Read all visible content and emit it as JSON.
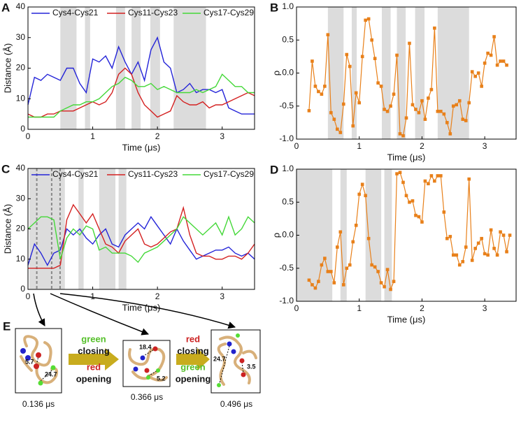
{
  "chart_data": [
    {
      "type": "line",
      "panel_label": "A",
      "xlabel": "Time (μs)",
      "ylabel": "Distance (Å)",
      "xlim": [
        0,
        3.5
      ],
      "ylim": [
        0,
        40
      ],
      "xticks": [
        0,
        1,
        2,
        3
      ],
      "yticks": [
        0,
        10,
        20,
        30,
        40
      ],
      "legend": "top",
      "bands": [
        [
          0.5,
          0.75
        ],
        [
          0.88,
          0.96
        ],
        [
          1.36,
          1.5
        ],
        [
          1.6,
          1.74
        ],
        [
          1.89,
          2.04
        ],
        [
          2.25,
          2.75
        ]
      ],
      "x": [
        0,
        0.1,
        0.2,
        0.3,
        0.4,
        0.5,
        0.6,
        0.7,
        0.8,
        0.9,
        1.0,
        1.1,
        1.2,
        1.3,
        1.4,
        1.5,
        1.6,
        1.7,
        1.8,
        1.9,
        2.0,
        2.1,
        2.2,
        2.3,
        2.4,
        2.5,
        2.6,
        2.7,
        2.8,
        2.9,
        3.0,
        3.1,
        3.2,
        3.3,
        3.4,
        3.5
      ],
      "series": [
        {
          "name": "Cys4-Cys21",
          "color": "#2424d8",
          "values": [
            8,
            17,
            16,
            18,
            17,
            16,
            20,
            20,
            15,
            12,
            23,
            22,
            24,
            20,
            27,
            22,
            18,
            22,
            16,
            26,
            30,
            22,
            20,
            12,
            13,
            15,
            12,
            13,
            13,
            12,
            13,
            7,
            6,
            5,
            5,
            5
          ]
        },
        {
          "name": "Cys11-Cys23",
          "color": "#d42020",
          "values": [
            5,
            4,
            4,
            5,
            5,
            6,
            6,
            6,
            7,
            8,
            9,
            8,
            9,
            12,
            18,
            20,
            18,
            12,
            8,
            6,
            4,
            5,
            6,
            11,
            9,
            8,
            8,
            9,
            7,
            8,
            8,
            9,
            10,
            11,
            12,
            11
          ]
        },
        {
          "name": "Cys17-Cys29",
          "color": "#44d838",
          "values": [
            4,
            4,
            4,
            4,
            4,
            6,
            7,
            8,
            8,
            9,
            9,
            10,
            12,
            14,
            15,
            17,
            16,
            14,
            14,
            15,
            13,
            14,
            13,
            12,
            12,
            12,
            13,
            12,
            13,
            14,
            18,
            16,
            14,
            14,
            12,
            12
          ]
        }
      ]
    },
    {
      "type": "line",
      "panel_label": "B",
      "xlabel": "Time (μs)",
      "ylabel": "ρ",
      "xlim": [
        0,
        3.5
      ],
      "ylim": [
        -1,
        1
      ],
      "xticks": [
        0,
        1,
        2,
        3
      ],
      "yticks": [
        {
          "value": -1,
          "label": "-1.0"
        },
        {
          "value": -0.5,
          "label": "-0.5"
        },
        {
          "value": 0,
          "label": "0.0"
        },
        {
          "value": 0.5,
          "label": "0.5"
        },
        {
          "value": 1,
          "label": "1.0"
        }
      ],
      "bands": [
        [
          0.5,
          0.75
        ],
        [
          0.88,
          0.96
        ],
        [
          1.36,
          1.5
        ],
        [
          1.6,
          1.74
        ],
        [
          1.89,
          2.04
        ],
        [
          2.25,
          2.75
        ]
      ],
      "marker": "square",
      "x": [
        0.2,
        0.25,
        0.3,
        0.35,
        0.4,
        0.45,
        0.5,
        0.55,
        0.6,
        0.65,
        0.7,
        0.75,
        0.8,
        0.85,
        0.9,
        0.95,
        1.0,
        1.05,
        1.1,
        1.15,
        1.2,
        1.25,
        1.3,
        1.35,
        1.4,
        1.45,
        1.5,
        1.55,
        1.6,
        1.65,
        1.7,
        1.75,
        1.8,
        1.85,
        1.9,
        1.95,
        2.0,
        2.05,
        2.1,
        2.15,
        2.2,
        2.25,
        2.3,
        2.35,
        2.4,
        2.45,
        2.5,
        2.55,
        2.6,
        2.65,
        2.7,
        2.75,
        2.8,
        2.85,
        2.9,
        2.95,
        3.0,
        3.05,
        3.1,
        3.15,
        3.2,
        3.25,
        3.3,
        3.35
      ],
      "series": [
        {
          "color": "#e8801a",
          "values": [
            -0.57,
            0.18,
            -0.2,
            -0.28,
            -0.32,
            -0.2,
            0.58,
            -0.6,
            -0.7,
            -0.85,
            -0.9,
            -0.47,
            0.28,
            0.1,
            -0.8,
            -0.3,
            -0.45,
            0.25,
            0.8,
            0.82,
            0.5,
            0.22,
            -0.15,
            -0.2,
            -0.55,
            -0.58,
            -0.5,
            -0.32,
            0.27,
            -0.92,
            -0.95,
            -0.68,
            0.45,
            -0.48,
            -0.55,
            -0.6,
            -0.42,
            -0.7,
            -0.38,
            -0.25,
            0.68,
            -0.58,
            -0.58,
            -0.62,
            -0.75,
            -0.92,
            -0.5,
            -0.48,
            -0.42,
            -0.7,
            -0.72,
            -0.45,
            0.02,
            -0.05,
            0,
            -0.2,
            0.15,
            0.3,
            0.27,
            0.55,
            0.12,
            0.18,
            0.18,
            0.12
          ]
        }
      ]
    },
    {
      "type": "line",
      "panel_label": "C",
      "xlabel": "Time (μs)",
      "ylabel": "Distance (Å)",
      "xlim": [
        0,
        3.5
      ],
      "ylim": [
        0,
        40
      ],
      "xticks": [
        0,
        1,
        2,
        3
      ],
      "yticks": [
        0,
        10,
        20,
        30,
        40
      ],
      "legend": "top",
      "bands": [
        [
          0.02,
          0.57
        ],
        [
          0.78,
          0.86
        ],
        [
          1.1,
          1.35
        ],
        [
          1.4,
          1.52
        ]
      ],
      "markers": [
        0.136,
        0.366,
        0.496
      ],
      "x": [
        0,
        0.1,
        0.2,
        0.3,
        0.4,
        0.5,
        0.6,
        0.7,
        0.8,
        0.9,
        1.0,
        1.1,
        1.2,
        1.3,
        1.4,
        1.5,
        1.6,
        1.7,
        1.8,
        1.9,
        2.0,
        2.1,
        2.2,
        2.3,
        2.4,
        2.5,
        2.6,
        2.7,
        2.8,
        2.9,
        3.0,
        3.1,
        3.2,
        3.3,
        3.4,
        3.5
      ],
      "series": [
        {
          "name": "Cys4-Cys21",
          "color": "#2424d8",
          "values": [
            8,
            15,
            12,
            8,
            12,
            13,
            20,
            18,
            20,
            17,
            15,
            18,
            20,
            15,
            14,
            18,
            20,
            22,
            20,
            24,
            21,
            18,
            15,
            20,
            16,
            13,
            10,
            11,
            12,
            13,
            13,
            14,
            12,
            11,
            12,
            10
          ]
        },
        {
          "name": "Cys11-Cys23",
          "color": "#d42020",
          "values": [
            7,
            7,
            7,
            7,
            7,
            8,
            23,
            28,
            25,
            22,
            25,
            20,
            15,
            14,
            12,
            16,
            18,
            20,
            15,
            14,
            15,
            17,
            19,
            20,
            27,
            18,
            12,
            11,
            11,
            10,
            10,
            11,
            11,
            10,
            12,
            15
          ]
        },
        {
          "name": "Cys17-Cys29",
          "color": "#44d838",
          "values": [
            20,
            22,
            24,
            24,
            23,
            10,
            17,
            20,
            18,
            21,
            20,
            13,
            14,
            12,
            12,
            12,
            11,
            9,
            12,
            13,
            14,
            16,
            18,
            20,
            24,
            22,
            20,
            18,
            20,
            22,
            18,
            24,
            18,
            20,
            24,
            22
          ]
        }
      ]
    },
    {
      "type": "line",
      "panel_label": "D",
      "xlabel": "Time (μs)",
      "ylabel": "ρ",
      "xlim": [
        0,
        3.5
      ],
      "ylim": [
        -1,
        1
      ],
      "xticks": [
        0,
        1,
        2,
        3
      ],
      "yticks": [
        {
          "value": -1,
          "label": "-1.0"
        },
        {
          "value": -0.5,
          "label": "-0.5"
        },
        {
          "value": 0,
          "label": "0.0"
        },
        {
          "value": 0.5,
          "label": "0.5"
        },
        {
          "value": 1,
          "label": "1.0"
        }
      ],
      "bands": [
        [
          0.0,
          0.57
        ],
        [
          0.7,
          0.8
        ],
        [
          1.1,
          1.35
        ],
        [
          1.4,
          1.52
        ]
      ],
      "marker": "square",
      "x": [
        0.2,
        0.25,
        0.3,
        0.35,
        0.4,
        0.45,
        0.5,
        0.55,
        0.6,
        0.65,
        0.7,
        0.75,
        0.8,
        0.85,
        0.9,
        0.95,
        1.0,
        1.05,
        1.1,
        1.15,
        1.2,
        1.25,
        1.3,
        1.35,
        1.4,
        1.45,
        1.5,
        1.55,
        1.6,
        1.65,
        1.7,
        1.75,
        1.8,
        1.85,
        1.9,
        1.95,
        2.0,
        2.05,
        2.1,
        2.15,
        2.2,
        2.25,
        2.3,
        2.35,
        2.4,
        2.45,
        2.5,
        2.55,
        2.6,
        2.65,
        2.7,
        2.75,
        2.8,
        2.85,
        2.9,
        2.95,
        3.0,
        3.05,
        3.1,
        3.15,
        3.2,
        3.25,
        3.3,
        3.35,
        3.4
      ],
      "series": [
        {
          "color": "#e8801a",
          "values": [
            -0.68,
            -0.75,
            -0.8,
            -0.7,
            -0.45,
            -0.35,
            -0.55,
            -0.55,
            -0.72,
            -0.18,
            0.05,
            -0.75,
            -0.5,
            -0.45,
            -0.1,
            0.15,
            0.62,
            0.77,
            0.6,
            -0.05,
            -0.45,
            -0.48,
            -0.55,
            -0.72,
            -0.78,
            -0.52,
            -0.82,
            -0.7,
            0.93,
            0.95,
            0.8,
            0.6,
            0.5,
            0.52,
            0.3,
            0.28,
            0.2,
            0.82,
            0.78,
            0.9,
            0.82,
            0.9,
            0.9,
            0.35,
            -0.05,
            -0.02,
            -0.3,
            -0.3,
            -0.45,
            -0.4,
            -0.18,
            0.85,
            -0.38,
            -0.2,
            -0.12,
            -0.05,
            -0.28,
            -0.3,
            0.08,
            -0.2,
            -0.3,
            0.05,
            0,
            -0.25,
            0
          ]
        }
      ]
    }
  ],
  "panel_e": {
    "label": "E",
    "snapshots": [
      {
        "time": "0.136 μs",
        "distances": [
          "5.7",
          "24.7"
        ]
      },
      {
        "time": "0.366 μs",
        "distances": [
          "18.4",
          "5.2"
        ]
      },
      {
        "time": "0.496 μs",
        "distances": [
          "24.7",
          "3.5"
        ]
      }
    ],
    "transitions": [
      {
        "first": "green",
        "first_verb": "closing",
        "second": "red",
        "second_verb": "opening"
      },
      {
        "first": "red",
        "first_verb": "closing",
        "second": "green",
        "second_verb": "opening"
      }
    ]
  }
}
